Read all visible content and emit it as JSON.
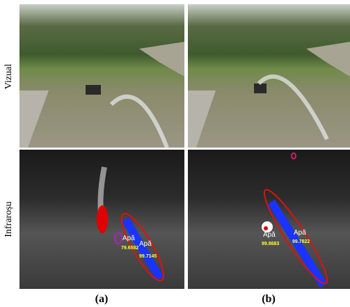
{
  "row_labels": [
    "Vizual",
    "Infraroșu"
  ],
  "panel_labels": [
    "(a)",
    "(b)"
  ],
  "panels": [
    {
      "detections": [
        {
          "label": "Apă",
          "score": 79.6582
        },
        {
          "label": "Apă",
          "score": 99.7145
        }
      ]
    },
    {
      "detections": [
        {
          "label": "Apă",
          "score": 99.8683
        },
        {
          "label": "Apă",
          "score": 99.7822
        }
      ]
    }
  ]
}
